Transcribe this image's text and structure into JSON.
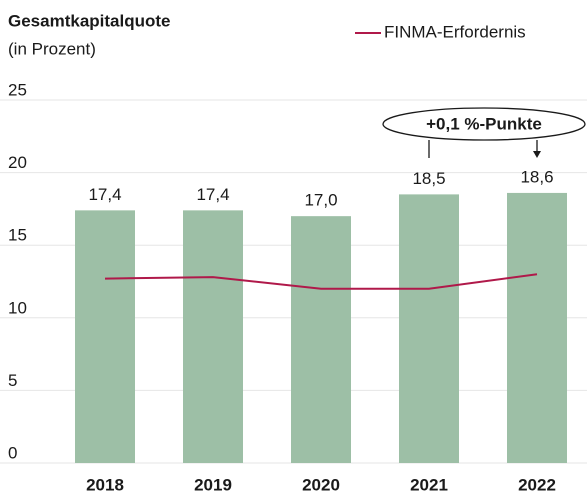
{
  "chart_data": {
    "type": "bar",
    "title": "Gesamtkapitalquote",
    "subtitle": "(in Prozent)",
    "categories": [
      "2018",
      "2019",
      "2020",
      "2021",
      "2022"
    ],
    "values": [
      17.4,
      17.4,
      17.0,
      18.5,
      18.6
    ],
    "value_labels": [
      "17,4",
      "17,4",
      "17,0",
      "18,5",
      "18,6"
    ],
    "color": "#9dbfa6",
    "series": [
      {
        "name": "FINMA-Erfordernis",
        "type": "line",
        "color": "#b0194a",
        "values": [
          12.7,
          12.8,
          12.0,
          12.0,
          13.0
        ]
      }
    ],
    "annotation": "+0,1 %-Punkte",
    "ylim": [
      0,
      25
    ],
    "yticks": [
      0,
      5,
      10,
      15,
      20,
      25
    ],
    "grid": true,
    "legend": "top-right"
  }
}
